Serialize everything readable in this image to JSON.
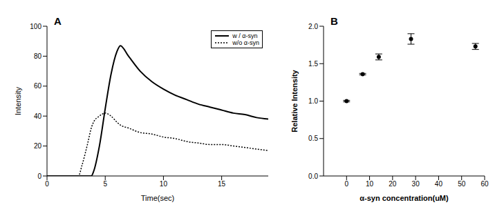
{
  "chart_data": [
    {
      "type": "line",
      "title": "A",
      "x_label": "Time(sec)",
      "y_label": "Intensity",
      "x": [
        0,
        1,
        2,
        2.7,
        3,
        3.5,
        3.8,
        4,
        4.5,
        5,
        5.5,
        6,
        6.3,
        7,
        8,
        9,
        10,
        11,
        12,
        13,
        14,
        15,
        16,
        17,
        18,
        19
      ],
      "series": [
        {
          "name": "w / α-syn",
          "color": "#000000",
          "line_style": "solid",
          "values": [
            0,
            0,
            0,
            0,
            0,
            0,
            0,
            3,
            20,
            45,
            68,
            83,
            87,
            80,
            70,
            63,
            58,
            54,
            51,
            48,
            46,
            44,
            42,
            41,
            39,
            38
          ]
        },
        {
          "name": "w/o α-syn",
          "color": "#000000",
          "line_style": "dotted",
          "values": [
            0,
            0,
            0,
            0,
            7,
            22,
            32,
            36,
            40,
            42,
            40,
            36,
            34,
            32,
            29,
            28,
            26,
            25,
            23,
            22,
            21,
            21,
            20,
            19,
            18,
            17
          ]
        }
      ],
      "xlim": [
        0,
        19
      ],
      "xticks": [
        0,
        5,
        10,
        15
      ],
      "ylim": [
        0,
        100
      ],
      "yticks": [
        0,
        20,
        40,
        60,
        80,
        100
      ],
      "legend": "upper right"
    },
    {
      "type": "scatter",
      "title": "B",
      "x_label": "α-syn concentration(uM)",
      "y_label": "Relative Intensity",
      "x": [
        0,
        7,
        14,
        28,
        56
      ],
      "values": [
        1.0,
        1.36,
        1.59,
        1.83,
        1.73
      ],
      "errors": [
        0.01,
        0.01,
        0.04,
        0.07,
        0.04
      ],
      "color": "#000000",
      "marker": "circle",
      "xlim": [
        -10,
        60
      ],
      "xticks": [
        0,
        10,
        20,
        30,
        40,
        50,
        60
      ],
      "ylim": [
        0,
        2
      ],
      "yticks": [
        {
          "value": 0,
          "label": "0.0"
        },
        {
          "value": 0.5,
          "label": "0.5"
        },
        {
          "value": 1,
          "label": "1.0"
        },
        {
          "value": 1.5,
          "label": "1.5"
        },
        {
          "value": 2,
          "label": "2.0"
        }
      ]
    }
  ]
}
